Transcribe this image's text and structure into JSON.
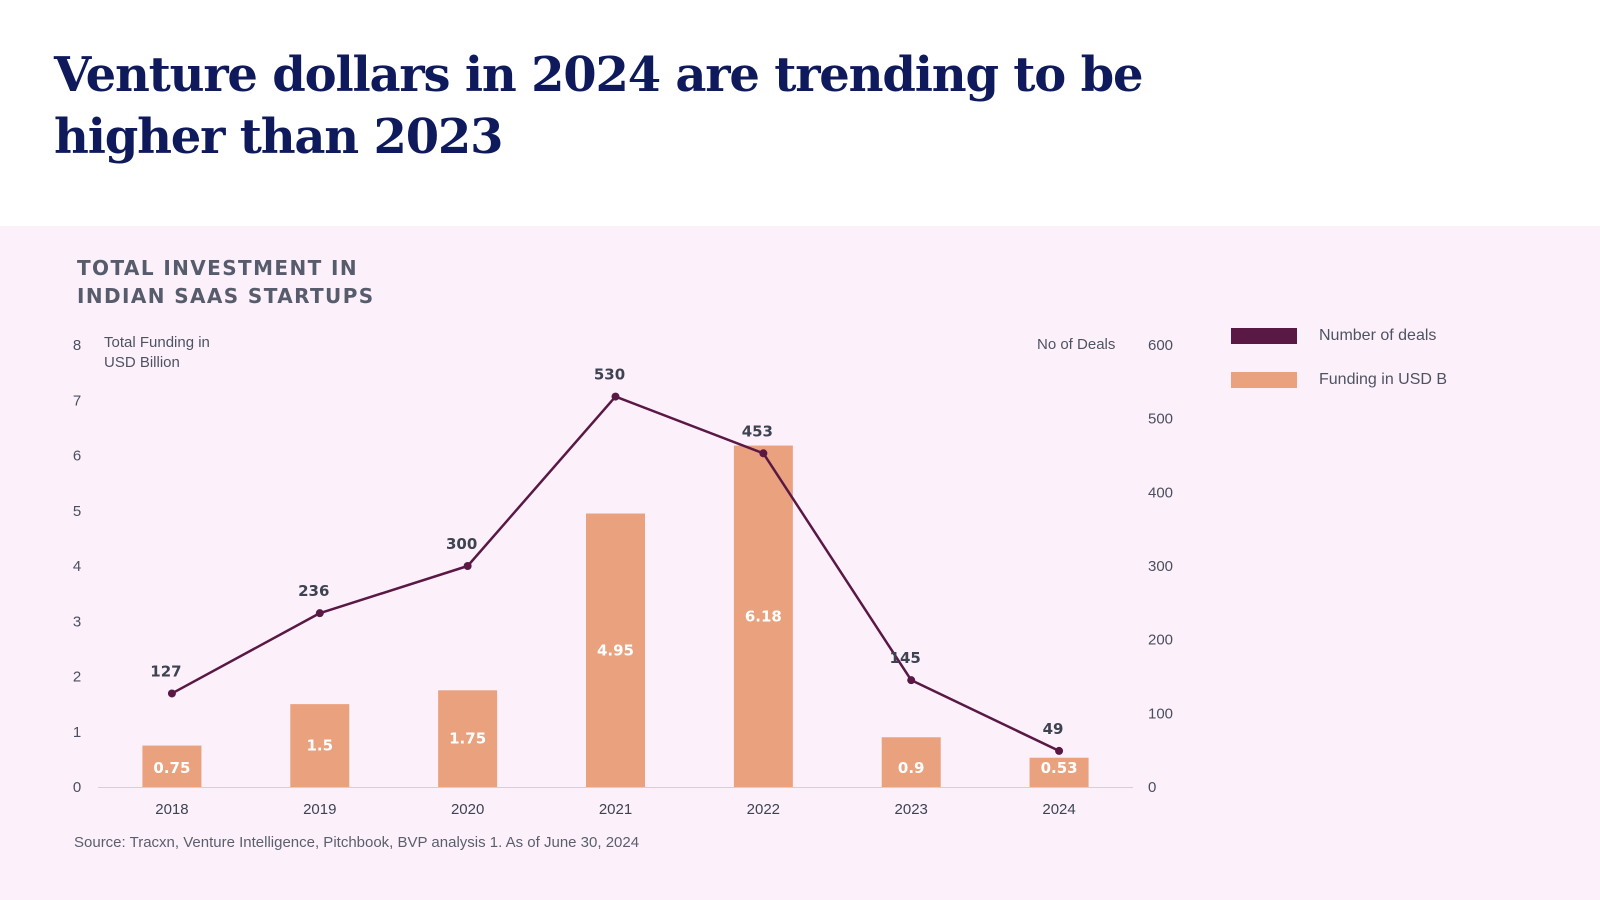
{
  "headline": "Venture dollars in 2024 are trending to be higher than 2023",
  "chart_data": {
    "type": "bar",
    "title": "TOTAL INVESTMENT IN INDIAN SAAS STARTUPS",
    "ylabel": "Total Funding in USD Billion",
    "y2label": "No of Deals",
    "categories": [
      "2018",
      "2019",
      "2020",
      "2021",
      "2022",
      "2023",
      "2024"
    ],
    "ylim": [
      0,
      8
    ],
    "y_ticks": [
      0,
      1,
      2,
      3,
      4,
      5,
      6,
      7,
      8
    ],
    "y2lim": [
      0,
      600
    ],
    "y2_ticks": [
      0,
      100,
      200,
      300,
      400,
      500,
      600
    ],
    "series": [
      {
        "name": "Funding in USD B",
        "type": "bar",
        "axis": "left",
        "color": "#e9a17e",
        "values": [
          0.75,
          1.5,
          1.75,
          4.95,
          6.18,
          0.9,
          0.53
        ]
      },
      {
        "name": "Number of deals",
        "type": "line",
        "axis": "right",
        "color": "#5a1844",
        "values": [
          127,
          236,
          300,
          530,
          453,
          145,
          49
        ]
      }
    ],
    "legend": [
      "Number of deals",
      "Funding in USD B"
    ],
    "legend_position": "right"
  },
  "source": "Source: Tracxn, Venture Intelligence, Pitchbook, BVP analysis 1. As of June 30, 2024"
}
